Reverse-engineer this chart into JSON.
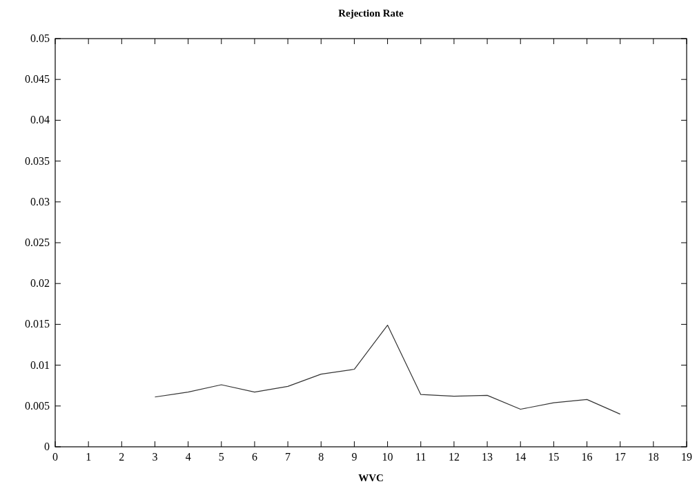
{
  "chart_data": {
    "type": "line",
    "title": "Rejection Rate",
    "xlabel": "WVC",
    "x": [
      3,
      4,
      5,
      6,
      7,
      8,
      9,
      10,
      11,
      12,
      13,
      14,
      15,
      16,
      17
    ],
    "series": [
      {
        "color": "#333333",
        "values": [
          0.0061,
          0.0067,
          0.0076,
          0.0067,
          0.0074,
          0.0089,
          0.0095,
          0.0149,
          0.0064,
          0.0062,
          0.0063,
          0.0046,
          0.0054,
          0.0058,
          0.004
        ]
      }
    ],
    "xlim": [
      0,
      19
    ],
    "xticks": [
      0,
      1,
      2,
      3,
      4,
      5,
      6,
      7,
      8,
      9,
      10,
      11,
      12,
      13,
      14,
      15,
      16,
      17,
      18,
      19
    ],
    "ylim": [
      0,
      0.05
    ],
    "yticks": [
      0,
      0.005,
      0.01,
      0.015,
      0.02,
      0.025,
      0.03,
      0.035,
      0.04,
      0.045,
      0.05
    ],
    "grid": false,
    "marker": "none",
    "line_style": "solid"
  }
}
